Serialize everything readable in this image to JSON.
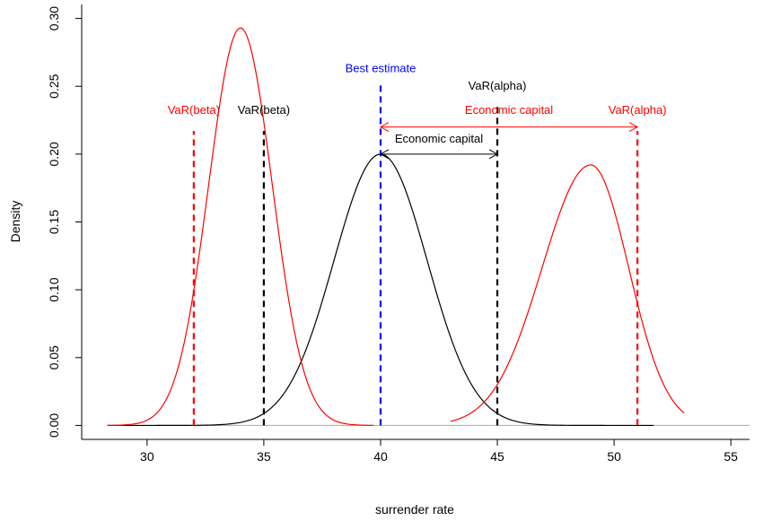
{
  "chart_data": {
    "type": "line",
    "xlabel": "surrender rate",
    "ylabel": "Density",
    "xlim": [
      27.2,
      55.8
    ],
    "ylim": [
      -0.0103,
      0.3103
    ],
    "x_ticks": [
      30,
      35,
      40,
      45,
      50,
      55
    ],
    "y_ticks": [
      0.0,
      0.05,
      0.1,
      0.15,
      0.2,
      0.25,
      0.3
    ],
    "x_tick_labels": [
      "30",
      "35",
      "40",
      "45",
      "50",
      "55"
    ],
    "y_tick_labels": [
      "0.00",
      "0.05",
      "0.10",
      "0.15",
      "0.20",
      "0.25",
      "0.30"
    ],
    "baseline": {
      "y": 0,
      "color": "#aaaaaa"
    },
    "series": [
      {
        "color": "#000000",
        "mean": 40,
        "sd": 2.0,
        "range": [
          28.3,
          51.7
        ],
        "peak_value": 0.2,
        "points": 240
      },
      {
        "color": "#ff0000",
        "mean": 34,
        "sd": 1.36,
        "range": [
          28.3,
          39.7
        ],
        "peak_value": 0.293,
        "points": 160
      },
      {
        "color": "#ff0000",
        "mean": 49,
        "sd": 2.08,
        "range": [
          43.0,
          53.0
        ],
        "peak_value": 0.192,
        "points": 160,
        "shape_note": "skewed"
      }
    ],
    "vlines": [
      {
        "x": 32,
        "y_top": 0.217,
        "color": "#ff0000"
      },
      {
        "x": 35,
        "y_top": 0.217,
        "color": "#000000"
      },
      {
        "x": 40,
        "y_top": 0.251,
        "color": "#0000ff"
      },
      {
        "x": 45,
        "y_top": 0.238,
        "color": "#000000"
      },
      {
        "x": 51,
        "y_top": 0.217,
        "color": "#ff0000"
      }
    ],
    "arrows": [
      {
        "x1": 40,
        "x2": 45,
        "y": 0.2,
        "color": "#000000"
      },
      {
        "x1": 40,
        "x2": 51,
        "y": 0.22,
        "color": "#ff0000"
      }
    ],
    "annotations": [
      {
        "text": "Best estimate",
        "x": 40,
        "y": 0.2605,
        "color": "#0000ff"
      },
      {
        "text": "VaR(alpha)",
        "x": 45,
        "y": 0.2475,
        "color": "#000000"
      },
      {
        "text": "VaR(beta)",
        "x": 32,
        "y": 0.2295,
        "color": "#ff0000"
      },
      {
        "text": "VaR(beta)",
        "x": 35,
        "y": 0.2295,
        "color": "#000000"
      },
      {
        "text": "Economic capital",
        "x": 45.5,
        "y": 0.2295,
        "color": "#ff0000"
      },
      {
        "text": "VaR(alpha)",
        "x": 51,
        "y": 0.2295,
        "color": "#ff0000"
      },
      {
        "text": "Economic capital",
        "x": 42.5,
        "y": 0.2085,
        "color": "#000000"
      }
    ]
  }
}
